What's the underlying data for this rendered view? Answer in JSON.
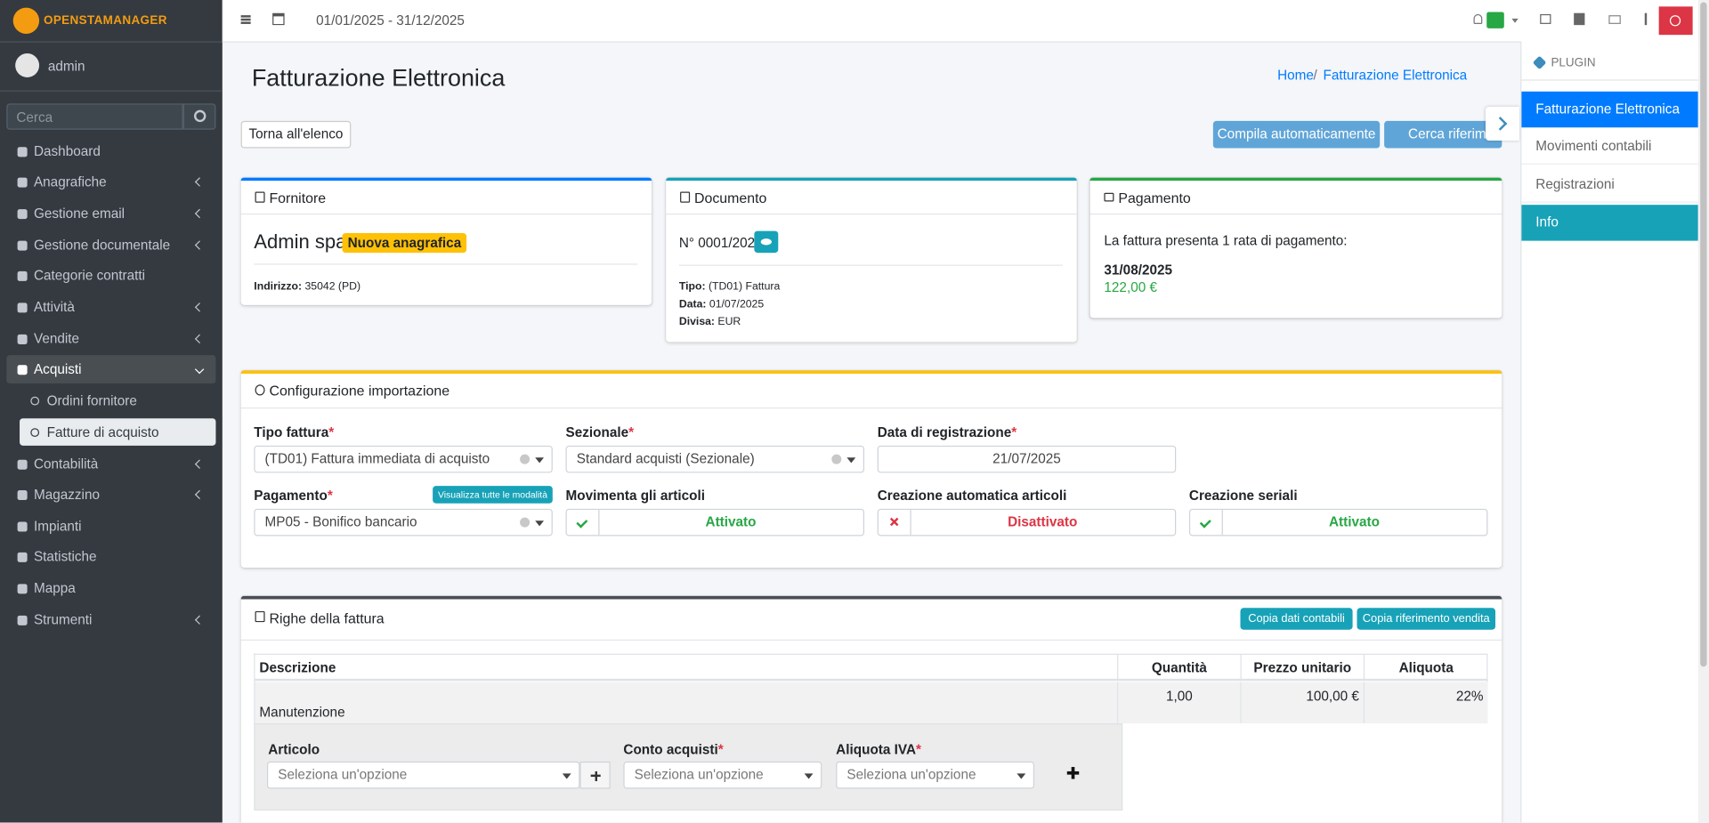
{
  "topbar": {
    "brand": "OPENSTAMANAGER",
    "period": "01/01/2025 - 31/12/2025"
  },
  "sidebar": {
    "user": "admin",
    "search_placeholder": "Cerca",
    "menu": [
      "Dashboard",
      "Anagrafiche",
      "Gestione email",
      "Gestione documentale",
      "Categorie contratti",
      "Attività",
      "Vendite",
      "Acquisti",
      "Contabilità",
      "Magazzino",
      "Impianti",
      "Statistiche",
      "Mappa",
      "Strumenti"
    ],
    "submenu": [
      "Ordini fornitore",
      "Fatture di acquisto"
    ]
  },
  "header": {
    "title": "Fatturazione Elettronica",
    "breadcrumb": [
      "Home",
      "Fatturazione Elettronica"
    ]
  },
  "toolbar": {
    "back": "Torna all'elenco",
    "autofill": "Compila automaticamente",
    "search_references": "Cerca riferimenti"
  },
  "supplier": {
    "title": "Fornitore",
    "name": "Admin spa",
    "badge": "Nuova anagrafica",
    "address_label": "Indirizzo:",
    "address": "35042 (PD)"
  },
  "document": {
    "title": "Documento",
    "number": "N° 0001/2025",
    "fields": [
      {
        "label": "Tipo:",
        "value": "(TD01) Fattura"
      },
      {
        "label": "Data:",
        "value": "01/07/2025"
      },
      {
        "label": "Divisa:",
        "value": "EUR"
      }
    ]
  },
  "payment": {
    "title": "Pagamento",
    "text": "La fattura presenta 1 rata di pagamento:",
    "date": "31/08/2025",
    "amount": "122,00 €"
  },
  "config": {
    "title": "Configurazione importazione",
    "required_mark": "*",
    "show_all": "Visualizza tutte le modalità",
    "fields": [
      {
        "label": "Tipo fattura",
        "value": "(TD01) Fattura immediata di acquisto"
      },
      {
        "label": "Sezionale",
        "value": "Standard acquisti (Sezionale)"
      },
      {
        "label": "Data di registrazione",
        "value": "21/07/2025"
      },
      {
        "label": "Pagamento",
        "value": "MP05 - Bonifico bancario"
      },
      {
        "label": "Movimenta gli articoli",
        "value": "Attivato"
      },
      {
        "label": "Creazione automatica articoli",
        "value": "Disattivato"
      },
      {
        "label": "Creazione seriali",
        "value": "Attivato"
      }
    ]
  },
  "lines": {
    "title": "Righe della fattura",
    "buttons": [
      "Copia dati contabili",
      "Copia riferimento vendita"
    ],
    "columns": [
      "Descrizione",
      "Quantità",
      "Prezzo unitario",
      "Aliquota"
    ],
    "rows": [
      [
        "Manutenzione",
        "1,00",
        "100,00 €",
        "22%"
      ]
    ],
    "subform": [
      "Articolo",
      "Conto acquisti",
      "Aliquota IVA"
    ],
    "placeholder": "Seleziona un'opzione"
  },
  "plugins": {
    "header": "PLUGIN",
    "items": [
      "Fatturazione Elettronica",
      "Movimenti contabili",
      "Registrazioni",
      "Info"
    ]
  }
}
